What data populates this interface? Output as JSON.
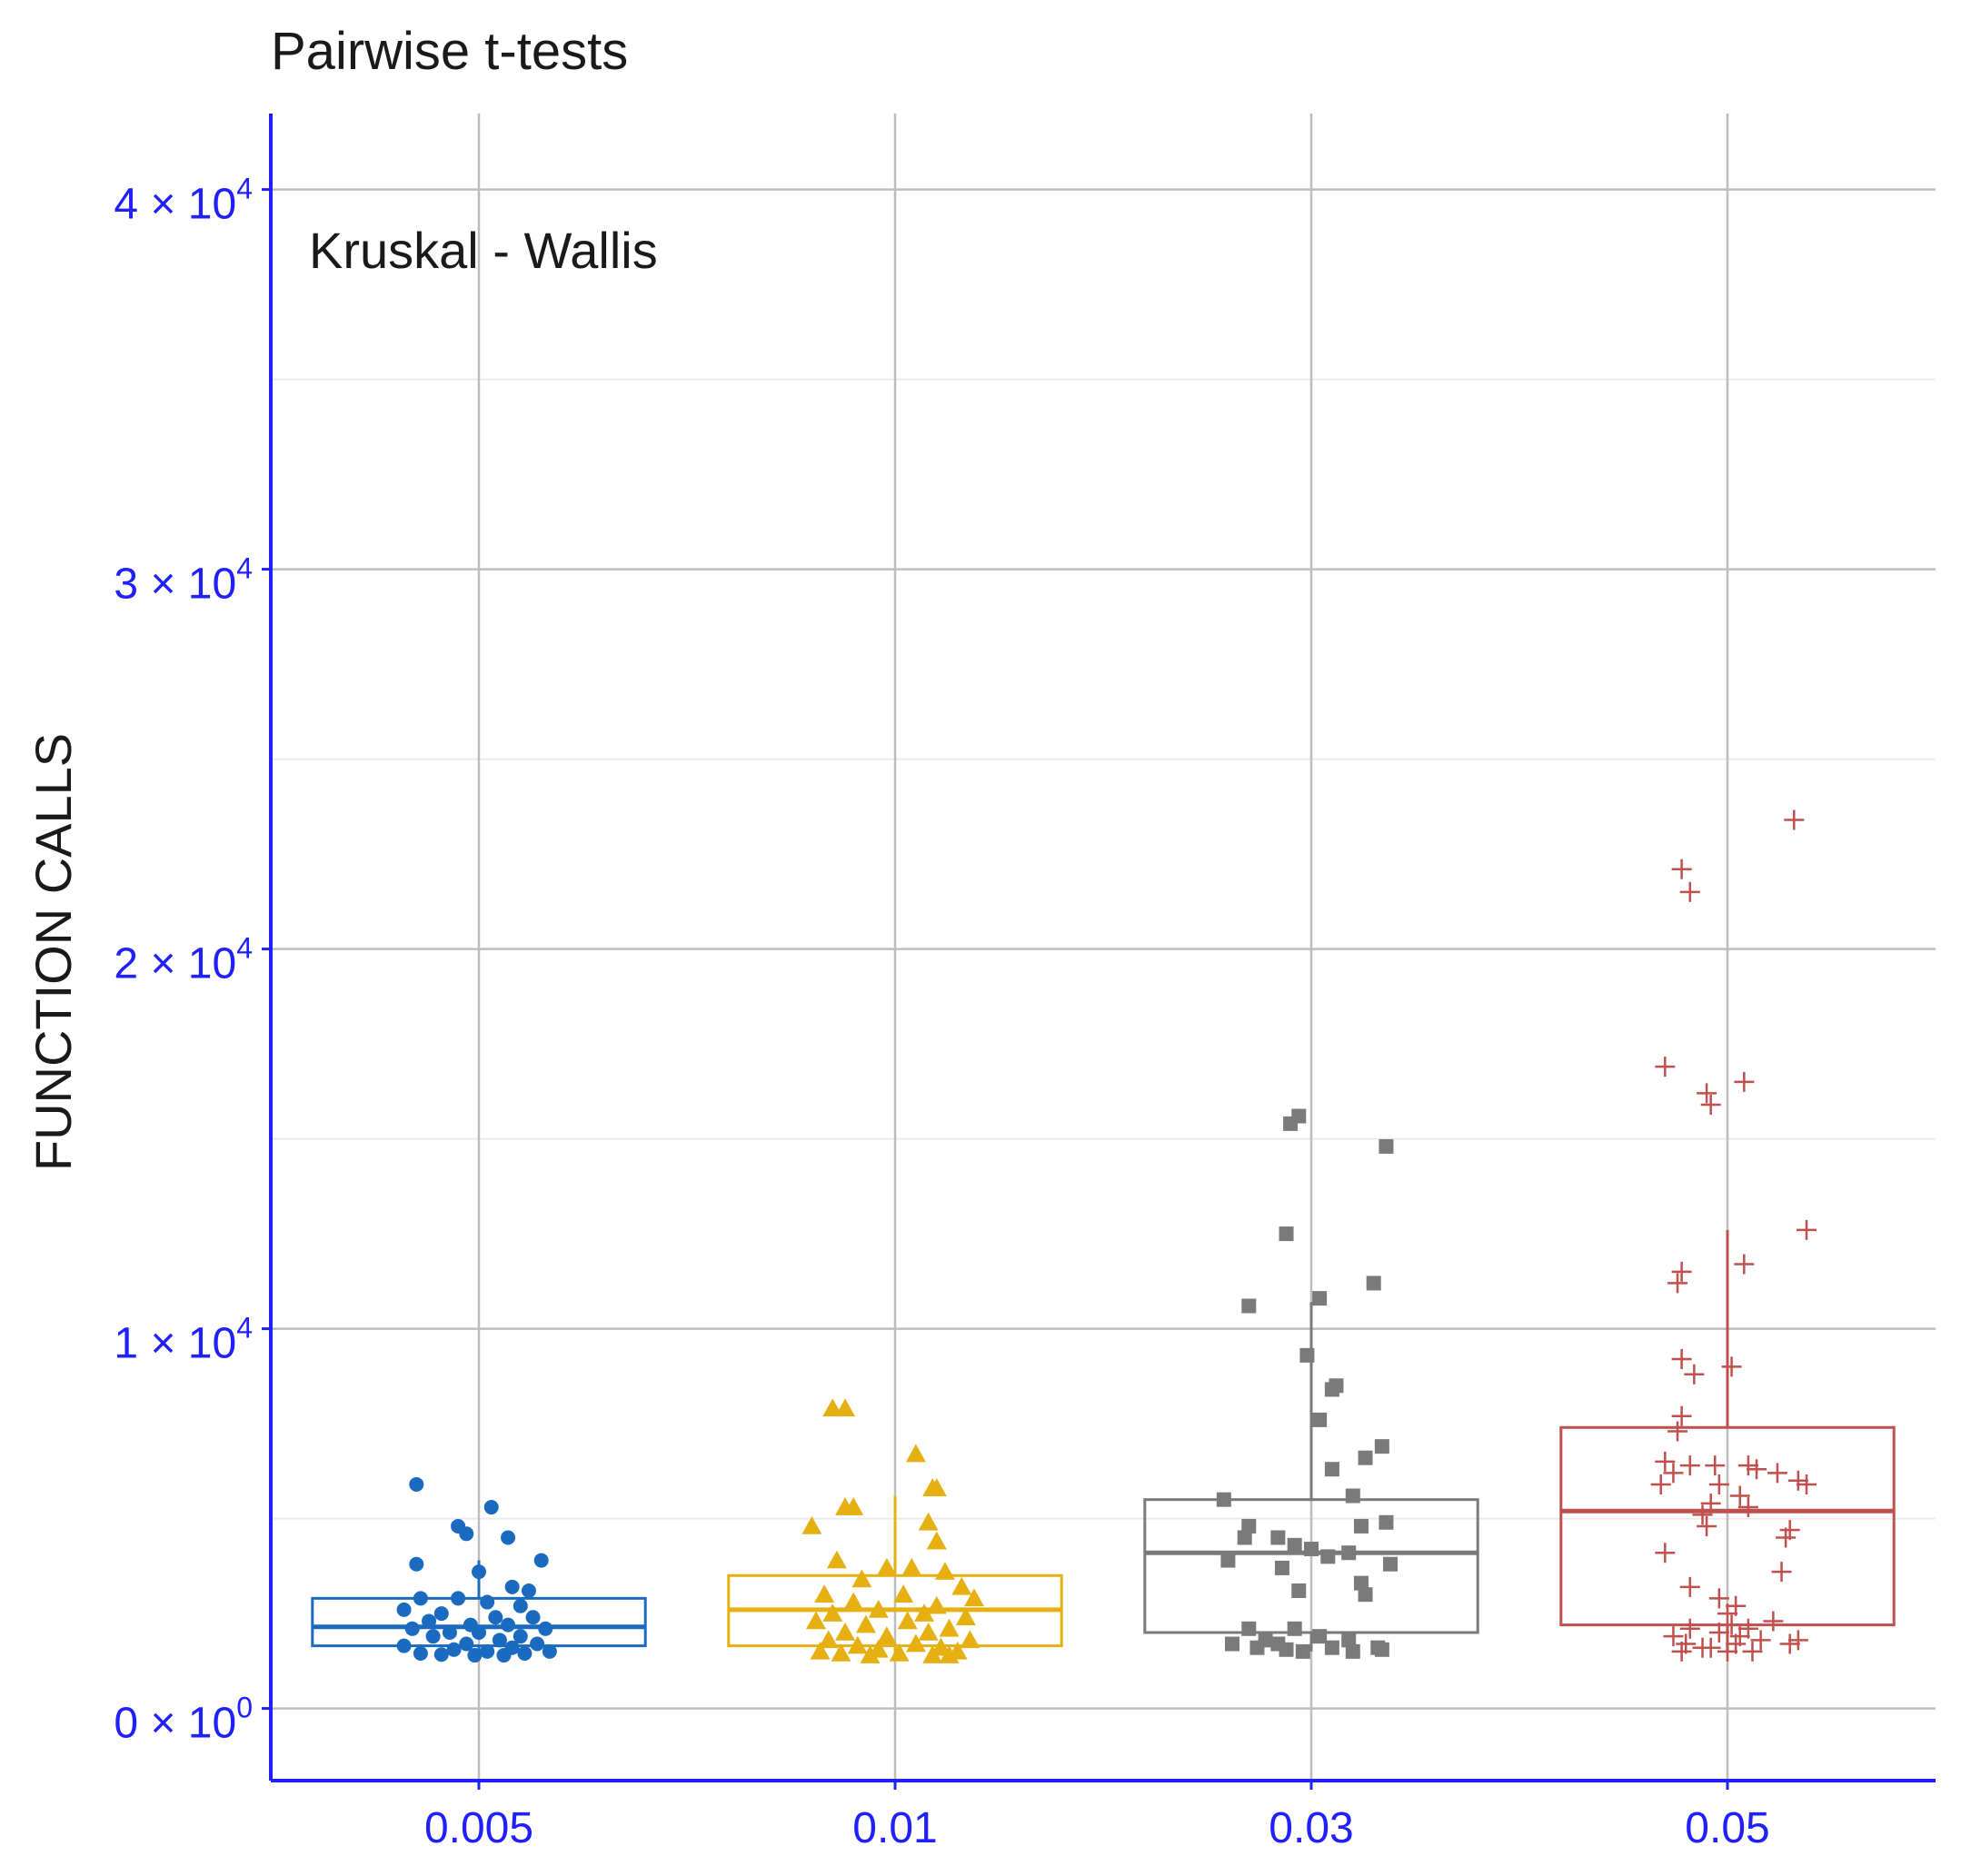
{
  "chart_data": {
    "type": "boxplot",
    "title": "Pairwise t-tests",
    "annotation": "Kruskal - Wallis",
    "xlabel": "",
    "ylabel": "FUNCTION CALLS",
    "ylim": [
      -1900,
      42000
    ],
    "grid": true,
    "axis_color": "#2020ff",
    "tick_label_color": "#2020ff",
    "y_ticks": [
      {
        "value": 0,
        "mantissa": "0",
        "exponent": "0"
      },
      {
        "value": 10000,
        "mantissa": "1",
        "exponent": "4"
      },
      {
        "value": 20000,
        "mantissa": "2",
        "exponent": "4"
      },
      {
        "value": 30000,
        "mantissa": "3",
        "exponent": "4"
      },
      {
        "value": 40000,
        "mantissa": "4",
        "exponent": "4"
      }
    ],
    "categories": [
      "0.005",
      "0.01",
      "0.03",
      "0.05"
    ],
    "groups": [
      {
        "name": "0.005",
        "color": "#1a6bbf",
        "shape": "circle",
        "q1": 1650,
        "median": 2150,
        "q3": 2900,
        "whisker_low": 1400,
        "whisker_high": 3900,
        "points": [
          [
            -0.15,
            5900
          ],
          [
            0.03,
            5300
          ],
          [
            -0.05,
            4800
          ],
          [
            0.07,
            4500
          ],
          [
            -0.03,
            4600
          ],
          [
            0.15,
            3900
          ],
          [
            -0.15,
            3800
          ],
          [
            0.0,
            3600
          ],
          [
            0.08,
            3200
          ],
          [
            0.12,
            3100
          ],
          [
            -0.14,
            2900
          ],
          [
            -0.05,
            2900
          ],
          [
            0.02,
            2800
          ],
          [
            0.1,
            2700
          ],
          [
            -0.18,
            2600
          ],
          [
            -0.09,
            2500
          ],
          [
            0.04,
            2400
          ],
          [
            0.13,
            2400
          ],
          [
            -0.12,
            2300
          ],
          [
            -0.02,
            2200
          ],
          [
            0.07,
            2200
          ],
          [
            0.16,
            2100
          ],
          [
            -0.16,
            2100
          ],
          [
            -0.07,
            2000
          ],
          [
            0.0,
            2000
          ],
          [
            0.1,
            1900
          ],
          [
            -0.11,
            1900
          ],
          [
            0.05,
            1800
          ],
          [
            -0.03,
            1700
          ],
          [
            0.14,
            1700
          ],
          [
            -0.18,
            1650
          ],
          [
            0.08,
            1600
          ],
          [
            -0.06,
            1550
          ],
          [
            0.02,
            1500
          ],
          [
            0.17,
            1500
          ],
          [
            -0.14,
            1450
          ],
          [
            0.11,
            1450
          ],
          [
            -0.01,
            1400
          ],
          [
            0.06,
            1400
          ],
          [
            -0.09,
            1420
          ]
        ]
      },
      {
        "name": "0.01",
        "color": "#e6b012",
        "shape": "triangle",
        "q1": 1650,
        "median": 2600,
        "q3": 3500,
        "whisker_low": 1400,
        "whisker_high": 5600,
        "points": [
          [
            -0.15,
            7900
          ],
          [
            -0.12,
            7900
          ],
          [
            0.05,
            6700
          ],
          [
            0.09,
            5800
          ],
          [
            0.1,
            5800
          ],
          [
            -0.12,
            5300
          ],
          [
            -0.1,
            5300
          ],
          [
            0.08,
            4900
          ],
          [
            -0.2,
            4800
          ],
          [
            0.1,
            4400
          ],
          [
            -0.14,
            3900
          ],
          [
            -0.02,
            3700
          ],
          [
            0.04,
            3700
          ],
          [
            0.12,
            3600
          ],
          [
            -0.08,
            3400
          ],
          [
            0.16,
            3200
          ],
          [
            -0.17,
            3000
          ],
          [
            0.02,
            3000
          ],
          [
            0.19,
            2900
          ],
          [
            -0.1,
            2800
          ],
          [
            0.1,
            2700
          ],
          [
            -0.04,
            2600
          ],
          [
            0.07,
            2500
          ],
          [
            -0.15,
            2500
          ],
          [
            0.17,
            2400
          ],
          [
            -0.19,
            2300
          ],
          [
            0.03,
            2300
          ],
          [
            -0.07,
            2200
          ],
          [
            0.13,
            2100
          ],
          [
            -0.12,
            2000
          ],
          [
            0.08,
            2000
          ],
          [
            -0.02,
            1900
          ],
          [
            0.18,
            1800
          ],
          [
            -0.16,
            1800
          ],
          [
            0.05,
            1700
          ],
          [
            -0.09,
            1650
          ],
          [
            0.11,
            1600
          ],
          [
            -0.04,
            1550
          ],
          [
            0.15,
            1500
          ],
          [
            -0.18,
            1500
          ],
          [
            0.01,
            1450
          ],
          [
            -0.13,
            1450
          ],
          [
            0.09,
            1400
          ],
          [
            -0.06,
            1400
          ],
          [
            0.13,
            1400
          ]
        ]
      },
      {
        "name": "0.03",
        "color": "#7a7a7a",
        "shape": "square",
        "q1": 2000,
        "median": 4100,
        "q3": 5500,
        "whisker_low": 1500,
        "whisker_high": 10700,
        "points": [
          [
            -0.05,
            15400
          ],
          [
            -0.03,
            15600
          ],
          [
            0.18,
            14800
          ],
          [
            -0.06,
            12500
          ],
          [
            0.15,
            11200
          ],
          [
            0.02,
            10800
          ],
          [
            -0.15,
            10600
          ],
          [
            -0.01,
            9300
          ],
          [
            0.06,
            8500
          ],
          [
            0.05,
            8400
          ],
          [
            0.02,
            7600
          ],
          [
            0.17,
            6900
          ],
          [
            0.13,
            6600
          ],
          [
            0.05,
            6300
          ],
          [
            -0.21,
            5500
          ],
          [
            0.1,
            5600
          ],
          [
            0.18,
            4900
          ],
          [
            0.12,
            4800
          ],
          [
            -0.15,
            4800
          ],
          [
            -0.08,
            4500
          ],
          [
            -0.16,
            4500
          ],
          [
            -0.04,
            4300
          ],
          [
            0.0,
            4200
          ],
          [
            0.04,
            4000
          ],
          [
            -0.2,
            3900
          ],
          [
            0.09,
            4100
          ],
          [
            0.19,
            3800
          ],
          [
            -0.07,
            3700
          ],
          [
            0.12,
            3300
          ],
          [
            -0.03,
            3100
          ],
          [
            0.13,
            3000
          ],
          [
            -0.15,
            2100
          ],
          [
            -0.04,
            2100
          ],
          [
            0.02,
            1900
          ],
          [
            -0.11,
            1800
          ],
          [
            0.09,
            1800
          ],
          [
            -0.08,
            1700
          ],
          [
            0.16,
            1600
          ],
          [
            -0.19,
            1700
          ],
          [
            0.05,
            1600
          ],
          [
            -0.13,
            1600
          ],
          [
            -0.02,
            1500
          ],
          [
            0.1,
            1500
          ],
          [
            -0.06,
            1550
          ],
          [
            0.17,
            1550
          ]
        ]
      },
      {
        "name": "0.05",
        "color": "#c0504d",
        "shape": "plus",
        "q1": 2200,
        "median": 5200,
        "q3": 7400,
        "whisker_low": 1500,
        "whisker_high": 12600,
        "points": [
          [
            0.16,
            23400
          ],
          [
            -0.11,
            22100
          ],
          [
            -0.09,
            21500
          ],
          [
            -0.15,
            16900
          ],
          [
            -0.05,
            16200
          ],
          [
            -0.04,
            15900
          ],
          [
            0.04,
            16500
          ],
          [
            0.19,
            12600
          ],
          [
            -0.11,
            11500
          ],
          [
            -0.12,
            11200
          ],
          [
            0.04,
            11700
          ],
          [
            -0.08,
            8800
          ],
          [
            -0.11,
            9200
          ],
          [
            0.01,
            9000
          ],
          [
            -0.11,
            7700
          ],
          [
            -0.12,
            7300
          ],
          [
            -0.15,
            6500
          ],
          [
            -0.13,
            6200
          ],
          [
            -0.09,
            6400
          ],
          [
            -0.03,
            6400
          ],
          [
            0.05,
            6400
          ],
          [
            0.07,
            6300
          ],
          [
            0.12,
            6200
          ],
          [
            0.17,
            6000
          ],
          [
            -0.02,
            5900
          ],
          [
            0.03,
            5600
          ],
          [
            -0.16,
            5900
          ],
          [
            0.19,
            5900
          ],
          [
            -0.04,
            5400
          ],
          [
            0.05,
            5300
          ],
          [
            -0.06,
            5100
          ],
          [
            -0.05,
            4800
          ],
          [
            0.15,
            4700
          ],
          [
            0.14,
            4500
          ],
          [
            -0.15,
            4100
          ],
          [
            0.13,
            3600
          ],
          [
            -0.09,
            3200
          ],
          [
            -0.02,
            2900
          ],
          [
            0.02,
            2700
          ],
          [
            0.0,
            2500
          ],
          [
            0.11,
            2300
          ],
          [
            -0.09,
            2100
          ],
          [
            0.05,
            2100
          ],
          [
            -0.02,
            2000
          ],
          [
            0.03,
            1900
          ],
          [
            -0.13,
            1900
          ],
          [
            0.08,
            1800
          ],
          [
            0.17,
            1800
          ],
          [
            -0.1,
            1700
          ],
          [
            0.02,
            1700
          ],
          [
            -0.06,
            1600
          ],
          [
            0.15,
            1700
          ],
          [
            0.0,
            1500
          ],
          [
            -0.11,
            1500
          ],
          [
            0.06,
            1500
          ],
          [
            -0.04,
            1600
          ],
          [
            0.01,
            2200
          ]
        ]
      }
    ]
  }
}
